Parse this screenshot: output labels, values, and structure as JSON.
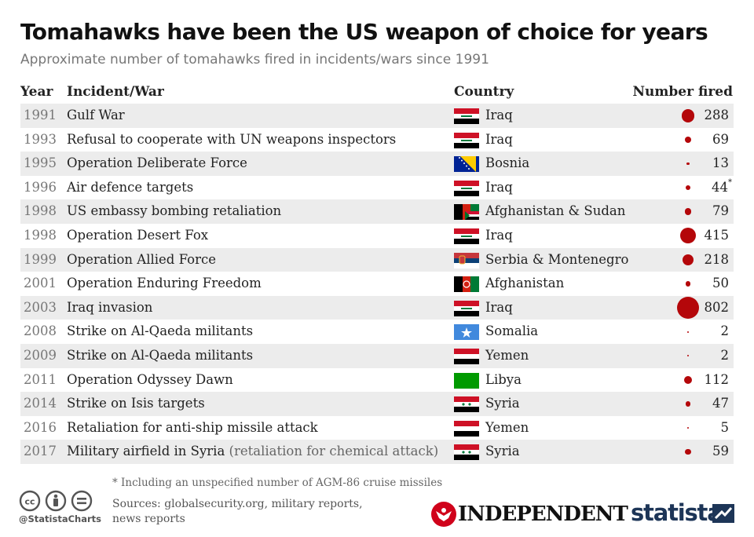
{
  "title": "Tomahawks have been the US weapon of choice for years",
  "subtitle": "Approximate number of tomahawks fired in incidents/wars since 1991",
  "columns": {
    "year": "Year",
    "incident": "Incident/War",
    "country": "Country",
    "number": "Number fired"
  },
  "chart_data": {
    "type": "table",
    "rows": [
      {
        "year": "1991",
        "incident": "Gulf War",
        "note": "",
        "country": "Iraq",
        "flag": "iraq-flag-icon",
        "value": 288,
        "value_label": "288",
        "asterisk": ""
      },
      {
        "year": "1993",
        "incident": "Refusal to cooperate with UN weapons inspectors",
        "note": "",
        "country": "Iraq",
        "flag": "iraq-flag-icon",
        "value": 69,
        "value_label": "69",
        "asterisk": ""
      },
      {
        "year": "1995",
        "incident": "Operation Deliberate Force",
        "note": "",
        "country": "Bosnia",
        "flag": "bosnia-flag-icon",
        "value": 13,
        "value_label": "13",
        "asterisk": ""
      },
      {
        "year": "1996",
        "incident": "Air defence targets",
        "note": "",
        "country": "Iraq",
        "flag": "iraq-flag-icon",
        "value": 44,
        "value_label": "44",
        "asterisk": "*"
      },
      {
        "year": "1998",
        "incident": "US embassy bombing retaliation",
        "note": "",
        "country": "Afghanistan & Sudan",
        "flag": "afghanistan-sudan-flag-icon",
        "value": 79,
        "value_label": "79",
        "asterisk": ""
      },
      {
        "year": "1998",
        "incident": "Operation Desert Fox",
        "note": "",
        "country": "Iraq",
        "flag": "iraq-flag-icon",
        "value": 415,
        "value_label": "415",
        "asterisk": ""
      },
      {
        "year": "1999",
        "incident": "Operation Allied Force",
        "note": "",
        "country": "Serbia & Montenegro",
        "flag": "serbia-flag-icon",
        "value": 218,
        "value_label": "218",
        "asterisk": ""
      },
      {
        "year": "2001",
        "incident": "Operation Enduring Freedom",
        "note": "",
        "country": "Afghanistan",
        "flag": "afghanistan-flag-icon",
        "value": 50,
        "value_label": "50",
        "asterisk": ""
      },
      {
        "year": "2003",
        "incident": "Iraq invasion",
        "note": "",
        "country": "Iraq",
        "flag": "iraq-flag-icon",
        "value": 802,
        "value_label": "802",
        "asterisk": ""
      },
      {
        "year": "2008",
        "incident": "Strike on Al-Qaeda militants",
        "note": "",
        "country": "Somalia",
        "flag": "somalia-flag-icon",
        "value": 2,
        "value_label": "2",
        "asterisk": ""
      },
      {
        "year": "2009",
        "incident": "Strike on Al-Qaeda militants",
        "note": "",
        "country": "Yemen",
        "flag": "yemen-flag-icon",
        "value": 2,
        "value_label": "2",
        "asterisk": ""
      },
      {
        "year": "2011",
        "incident": "Operation Odyssey Dawn",
        "note": "",
        "country": "Libya",
        "flag": "libya-flag-icon",
        "value": 112,
        "value_label": "112",
        "asterisk": ""
      },
      {
        "year": "2014",
        "incident": "Strike on Isis targets",
        "note": "",
        "country": "Syria",
        "flag": "syria-flag-icon",
        "value": 47,
        "value_label": "47",
        "asterisk": ""
      },
      {
        "year": "2016",
        "incident": "Retaliation for anti-ship missile attack",
        "note": "",
        "country": "Yemen",
        "flag": "yemen-flag-icon",
        "value": 5,
        "value_label": "5",
        "asterisk": ""
      },
      {
        "year": "2017",
        "incident": "Military airfield in Syria",
        "note": "(retaliation for chemical attack)",
        "country": "Syria",
        "flag": "syria-flag-icon",
        "value": 59,
        "value_label": "59",
        "asterisk": ""
      }
    ]
  },
  "footnote": "* Including an unspecified number of AGM-86 cruise missiles",
  "sources": "Sources: globalsecurity.org, military reports, news reports",
  "handle": "@StatistaCharts",
  "independent_logo": "INDEPENDENT",
  "statista_logo": "statista",
  "colors": {
    "dot": "#b4070a",
    "row_shade": "#ececec",
    "statista": "#1d3557"
  }
}
